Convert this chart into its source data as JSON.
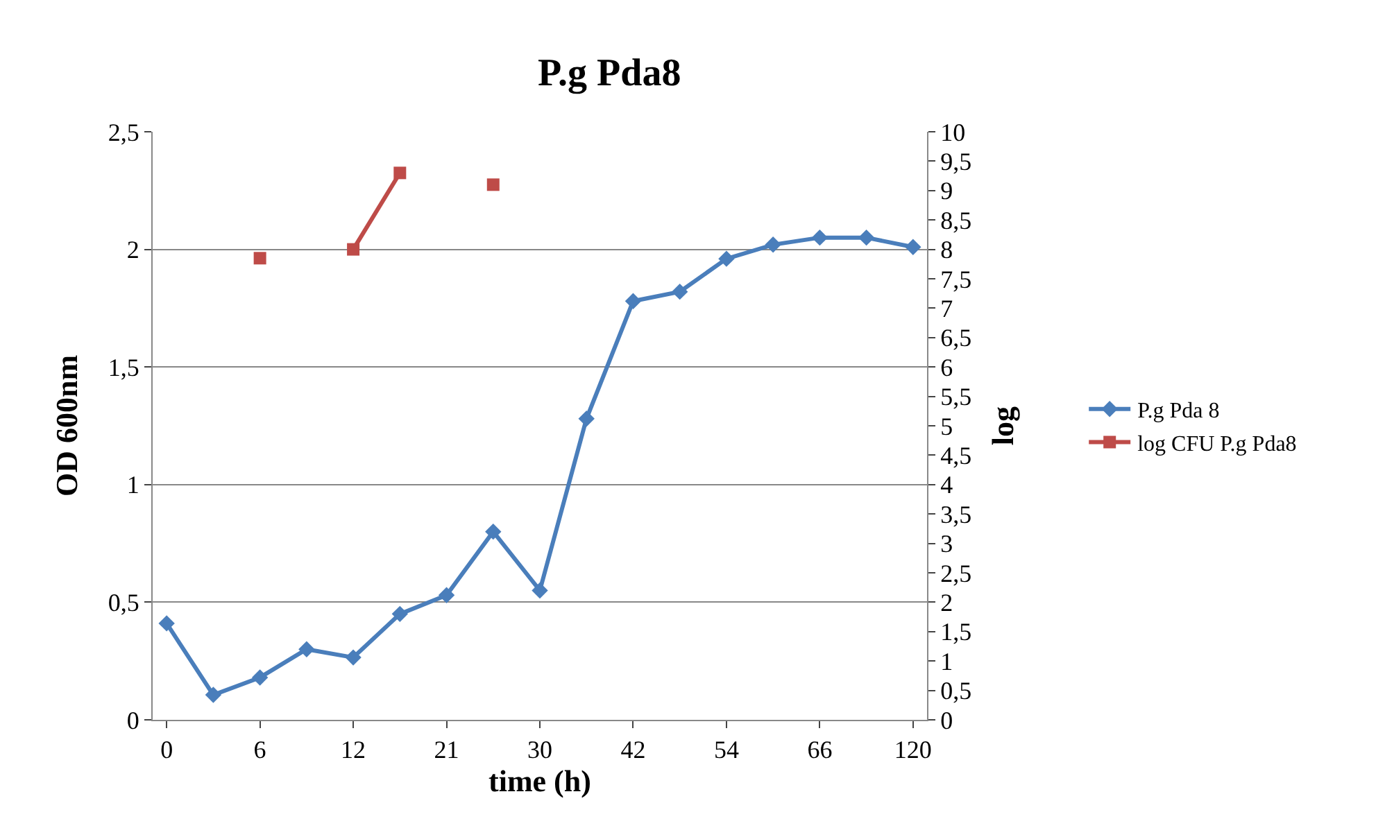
{
  "chart_data": {
    "type": "line",
    "title": "P.g Pda8",
    "xlabel": "time (h)",
    "ylabel": "OD 600nm",
    "y2label": "log",
    "categories": [
      "0",
      null,
      "6",
      null,
      "12",
      null,
      "21",
      null,
      "30",
      null,
      "42",
      null,
      "54",
      null,
      "66",
      null,
      "120"
    ],
    "series": [
      {
        "name": "P.g Pda 8",
        "color": "#4a7ebb",
        "marker": "diamond",
        "values": [
          0.41,
          0.106,
          0.18,
          0.3,
          0.265,
          0.45,
          0.53,
          0.8,
          0.55,
          1.28,
          1.78,
          1.82,
          1.96,
          2.02,
          2.05,
          2.05,
          2.01
        ]
      },
      {
        "name": "log CFU P.g Pda8",
        "color": "#be4b48",
        "marker": "square",
        "axis": "y2",
        "values": [
          null,
          null,
          7.85,
          null,
          8.0,
          9.3,
          null,
          9.1,
          null,
          null,
          null,
          null,
          null,
          null,
          null,
          null,
          null
        ]
      }
    ],
    "ylim": [
      0,
      2.5
    ],
    "yticks": [
      0,
      {
        "value": 0.5,
        "label": "0,5"
      },
      1,
      {
        "value": 1.5,
        "label": "1,5"
      },
      2,
      {
        "value": 2.5,
        "label": "2,5"
      }
    ],
    "y2lim": [
      0,
      10
    ],
    "y2ticks": [
      0,
      {
        "value": 0.5,
        "label": "0,5"
      },
      1,
      {
        "value": 1.5,
        "label": "1,5"
      },
      2,
      {
        "value": 2.5,
        "label": "2,5"
      },
      3,
      {
        "value": 3.5,
        "label": "3,5"
      },
      4,
      {
        "value": 4.5,
        "label": "4,5"
      },
      5,
      {
        "value": 5.5,
        "label": "5,5"
      },
      6,
      {
        "value": 6.5,
        "label": "6,5"
      },
      7,
      {
        "value": 7.5,
        "label": "7,5"
      },
      8,
      {
        "value": 8.5,
        "label": "8,5"
      },
      9,
      {
        "value": 9.5,
        "label": "9,5"
      },
      10
    ],
    "grid": "y",
    "legend": "right"
  }
}
